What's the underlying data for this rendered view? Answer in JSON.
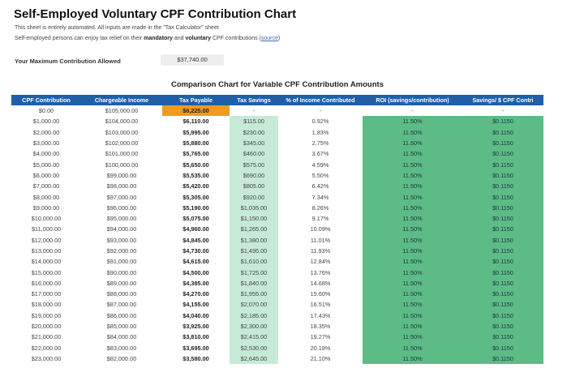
{
  "title": "Self-Employed Voluntary CPF Contribution Chart",
  "subtitle1": "This sheet is entirely automated. All inputs are made in the \"Tax Calculator\" sheet",
  "subtitle2": {
    "pre": "Self-employed persons can enjoy tax relief on their ",
    "b1": "mandatory",
    "mid": " and ",
    "b2": "voluntary",
    "post": " CPF contributions (",
    "link": "source",
    "end": ")"
  },
  "max_label": "Your Maximum Contribution Allowed",
  "max_value": "$37,740.00",
  "chart_title": "Comparison Chart for Variable CPF Contribution Amounts",
  "columns": [
    "CPF Contribution",
    "Chargeable Income",
    "Tax Payable",
    "Tax Savings",
    "% of Income Contributed",
    "ROI (savings/contribution)",
    "Savings/ $ CPF Contri"
  ],
  "colors": {
    "header": "#1f5fa8",
    "tax_highlight": "#f29a1e",
    "savings": "#c6ead6",
    "roi": "#5dbc86"
  },
  "rows": [
    [
      "$0.00",
      "$105,000.00",
      "$6,225.00",
      "-",
      "-",
      "-",
      "-"
    ],
    [
      "$1,000.00",
      "$104,000.00",
      "$6,110.00",
      "$115.00",
      "0.92%",
      "11.50%",
      "$0.1150"
    ],
    [
      "$2,000.00",
      "$103,000.00",
      "$5,995.00",
      "$230.00",
      "1.83%",
      "11.50%",
      "$0.1150"
    ],
    [
      "$3,000.00",
      "$102,000.00",
      "$5,880.00",
      "$345.00",
      "2.75%",
      "11.50%",
      "$0.1150"
    ],
    [
      "$4,000.00",
      "$101,000.00",
      "$5,765.00",
      "$460.00",
      "3.67%",
      "11.50%",
      "$0.1150"
    ],
    [
      "$5,000.00",
      "$100,000.00",
      "$5,650.00",
      "$575.00",
      "4.59%",
      "11.50%",
      "$0.1150"
    ],
    [
      "$6,000.00",
      "$99,000.00",
      "$5,535.00",
      "$690.00",
      "5.50%",
      "11.50%",
      "$0.1150"
    ],
    [
      "$7,000.00",
      "$98,000.00",
      "$5,420.00",
      "$805.00",
      "6.42%",
      "11.50%",
      "$0.1150"
    ],
    [
      "$8,000.00",
      "$97,000.00",
      "$5,305.00",
      "$920.00",
      "7.34%",
      "11.50%",
      "$0.1150"
    ],
    [
      "$9,000.00",
      "$96,000.00",
      "$5,190.00",
      "$1,035.00",
      "8.26%",
      "11.50%",
      "$0.1150"
    ],
    [
      "$10,000.00",
      "$95,000.00",
      "$5,075.00",
      "$1,150.00",
      "9.17%",
      "11.50%",
      "$0.1150"
    ],
    [
      "$11,000.00",
      "$94,000.00",
      "$4,960.00",
      "$1,265.00",
      "10.09%",
      "11.50%",
      "$0.1150"
    ],
    [
      "$12,000.00",
      "$93,000.00",
      "$4,845.00",
      "$1,380.00",
      "11.01%",
      "11.50%",
      "$0.1150"
    ],
    [
      "$13,000.00",
      "$92,000.00",
      "$4,730.00",
      "$1,495.00",
      "11.93%",
      "11.50%",
      "$0.1150"
    ],
    [
      "$14,000.00",
      "$91,000.00",
      "$4,615.00",
      "$1,610.00",
      "12.84%",
      "11.50%",
      "$0.1150"
    ],
    [
      "$15,000.00",
      "$90,000.00",
      "$4,500.00",
      "$1,725.00",
      "13.76%",
      "11.50%",
      "$0.1150"
    ],
    [
      "$16,000.00",
      "$89,000.00",
      "$4,385.00",
      "$1,840.00",
      "14.68%",
      "11.50%",
      "$0.1150"
    ],
    [
      "$17,000.00",
      "$88,000.00",
      "$4,270.00",
      "$1,955.00",
      "15.60%",
      "11.50%",
      "$0.1150"
    ],
    [
      "$18,000.00",
      "$87,000.00",
      "$4,155.00",
      "$2,070.00",
      "16.51%",
      "11.50%",
      "$0.1150"
    ],
    [
      "$19,000.00",
      "$86,000.00",
      "$4,040.00",
      "$2,185.00",
      "17.43%",
      "11.50%",
      "$0.1150"
    ],
    [
      "$20,000.00",
      "$85,000.00",
      "$3,925.00",
      "$2,300.00",
      "18.35%",
      "11.50%",
      "$0.1150"
    ],
    [
      "$21,000.00",
      "$84,000.00",
      "$3,810.00",
      "$2,415.00",
      "19.27%",
      "11.50%",
      "$0.1150"
    ],
    [
      "$22,000.00",
      "$83,000.00",
      "$3,695.00",
      "$2,530.00",
      "20.18%",
      "11.50%",
      "$0.1150"
    ],
    [
      "$23,000.00",
      "$82,000.00",
      "$3,580.00",
      "$2,645.00",
      "21.10%",
      "11.50%",
      "$0.1150"
    ]
  ]
}
